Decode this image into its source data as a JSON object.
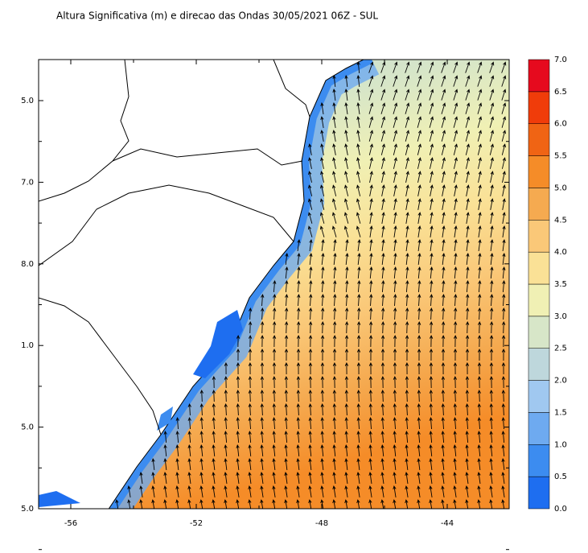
{
  "title": "Altura Significativa (m) e direcao das Ondas 30/05/2021 06Z - SUL",
  "lon_ticks": [
    "-56",
    "-52",
    "-48",
    "-44"
  ],
  "lat_ticks": [
    "5.0",
    "7.0",
    "8.0",
    "1.0",
    "5.0",
    "5.0"
  ],
  "colorbar": {
    "labels": [
      "0.0",
      "0.5",
      "1.0",
      "1.5",
      "2.0",
      "2.5",
      "3.0",
      "3.5",
      "4.0",
      "4.5",
      "5.0",
      "5.5",
      "6.0",
      "6.5",
      "7.0"
    ],
    "colors": [
      "#1e6ef0",
      "#3c8cf0",
      "#6eaaf0",
      "#a0c8f0",
      "#bed7dc",
      "#d7e6c8",
      "#f0f0b4",
      "#fae196",
      "#fac878",
      "#f5aa50",
      "#f58c28",
      "#f06414",
      "#f03c0a",
      "#e60a1e"
    ]
  }
}
